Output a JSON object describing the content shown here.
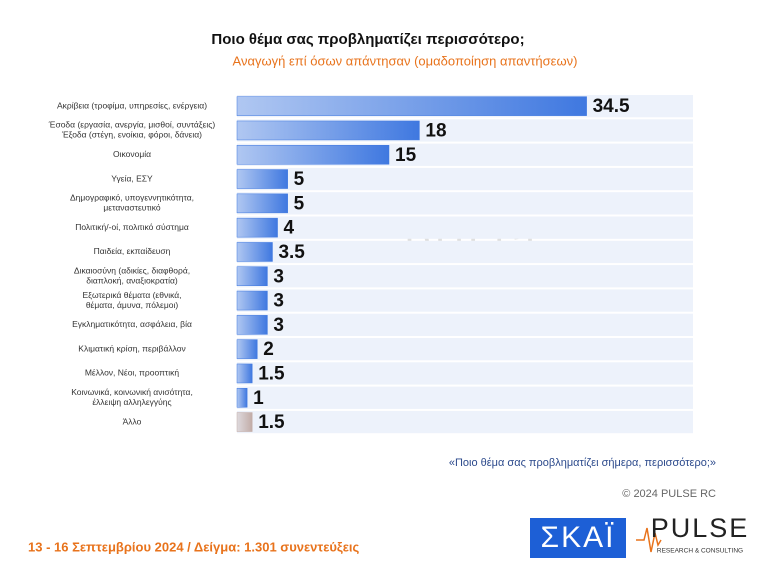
{
  "chart_data": {
    "type": "bar",
    "orientation": "horizontal",
    "title": "Ποιο θέμα σας προβληματίζει περισσότερο;",
    "subtitle": "Αναγωγή επί όσων απάντησαν   (ομαδοποίηση απαντήσεων)",
    "categories": [
      [
        "Ακρίβεια (τροφίμα, υπηρεσίες, ενέργεια)"
      ],
      [
        "Έσοδα (εργασία, ανεργία, μισθοί, συντάξεις)",
        "Έξοδα (στέγη, ενοίκια, φόροι, δάνεια)"
      ],
      [
        "Οικονομία"
      ],
      [
        "Υγεία, ΕΣΥ"
      ],
      [
        "Δημογραφικό, υπογεννητικότητα,",
        "μεταναστευτικό"
      ],
      [
        "Πολιτική/-οί, πολιτικό σύστημα"
      ],
      [
        "Παιδεία, εκπαίδευση"
      ],
      [
        "Δικαιοσύνη (αδικίες, διαφθορά,",
        "διαπλοκή, αναξιοκρατία)"
      ],
      [
        "Εξωτερικά θέματα (εθνικά,",
        "θέματα, άμυνα, πόλεμοι)"
      ],
      [
        "Εγκληματικότητα, ασφάλεια, βία"
      ],
      [
        "Κλιματική κρίση, περιβάλλον"
      ],
      [
        "Μέλλον, Νέοι, προοπτική"
      ],
      [
        "Κοινωνικά, κοινωνική ανισότητα,",
        "έλλειψη αλληλεγγύης"
      ],
      [
        "Άλλο"
      ]
    ],
    "values": [
      34.5,
      18,
      15,
      5,
      5,
      4,
      3.5,
      3,
      3,
      3,
      2,
      1.5,
      1,
      1.5
    ],
    "colors": [
      "#3f78e0",
      "#3f78e0",
      "#3f78e0",
      "#3f78e0",
      "#3f78e0",
      "#3f78e0",
      "#3f78e0",
      "#3f78e0",
      "#3f78e0",
      "#3f78e0",
      "#3f78e0",
      "#3f78e0",
      "#3f78e0",
      "#c2aca7"
    ],
    "xlim": [
      0,
      45
    ]
  },
  "footer": {
    "question": "«Ποιο θέμα σας προβληματίζει σήμερα, περισσότερο;»",
    "copyright": "© 2024 PULSE RC",
    "fieldwork": "13 - 16 Σεπτεμβρίου 2024  /  Δείγμα:  1.301 συνεντεύξεις"
  },
  "logos": {
    "skai": "ΣΚΑΪ",
    "pulse": "PULSE",
    "pulse_tagline": "RESEARCH & CONSULTING"
  }
}
